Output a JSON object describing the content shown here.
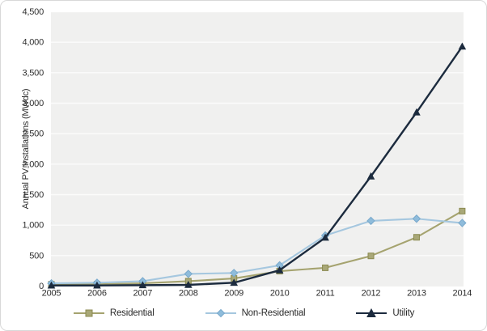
{
  "frame": {
    "background": "#ffffff",
    "border_color": "#d8d8d8",
    "plot_background": "#f0f0ef",
    "gridline_color": "rgba(255,255,255,0.75)",
    "text_color": "#2d2d2d"
  },
  "chart_data": {
    "type": "line",
    "title": "",
    "xlabel": "",
    "ylabel": "Annual PV Installations (MWdc)",
    "ylim": [
      0,
      4500
    ],
    "ytick_step": 500,
    "ytick_values": [
      0,
      500,
      1000,
      1500,
      2000,
      2500,
      3000,
      3500,
      4000,
      4500
    ],
    "ytick_labels": [
      "0",
      "500",
      "1,000",
      "1,500",
      "2,000",
      "2,500",
      "3,000",
      "3,500",
      "4,000",
      "4,500"
    ],
    "categories": [
      "2005",
      "2006",
      "2007",
      "2008",
      "2009",
      "2010",
      "2011",
      "2012",
      "2013",
      "2014"
    ],
    "grid": "horizontal-subtle",
    "legend_position": "bottom-center",
    "series": [
      {
        "name": "Residential",
        "marker": "square",
        "line_color": "#a5a36f",
        "marker_fill": "#a9a878",
        "marker_stroke": "#8b8a50",
        "values": [
          30,
          30,
          45,
          80,
          125,
          245,
          300,
          495,
          800,
          1230
        ]
      },
      {
        "name": "Non-Residential",
        "marker": "diamond",
        "line_color": "#a5c7df",
        "marker_fill": "#8fbcdb",
        "marker_stroke": "#79a9cc",
        "values": [
          45,
          55,
          80,
          200,
          215,
          340,
          830,
          1070,
          1105,
          1035
        ]
      },
      {
        "name": "Utility",
        "marker": "triangle",
        "line_color": "#1c2b3e",
        "marker_fill": "#1c2b3e",
        "marker_stroke": "#1c2b3e",
        "values": [
          10,
          10,
          15,
          20,
          55,
          260,
          795,
          1800,
          2850,
          3930
        ]
      }
    ]
  }
}
